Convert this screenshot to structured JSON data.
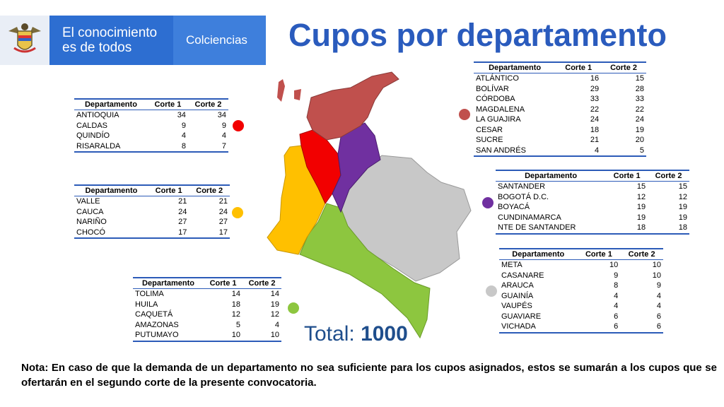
{
  "header": {
    "slogan": "El conocimiento es de todos",
    "brand": "Colciencias"
  },
  "title": "Cupos por departamento",
  "colors": {
    "red": "#f20000",
    "brown": "#c0504d",
    "orange": "#ffc000",
    "purple": "#7030a0",
    "green": "#8dc63f",
    "gray": "#c8c8c8"
  },
  "tables": {
    "red": {
      "headers": [
        "Departamento",
        "Corte 1",
        "Corte 2"
      ],
      "rows": [
        [
          "ANTIOQUIA",
          "34",
          "34"
        ],
        [
          "CALDAS",
          "9",
          "9"
        ],
        [
          "QUINDÍO",
          "4",
          "4"
        ],
        [
          "RISARALDA",
          "8",
          "7"
        ]
      ]
    },
    "orange": {
      "headers": [
        "Departamento",
        "Corte 1",
        "Corte 2"
      ],
      "rows": [
        [
          "VALLE",
          "21",
          "21"
        ],
        [
          "CAUCA",
          "24",
          "24"
        ],
        [
          "NARIÑO",
          "27",
          "27"
        ],
        [
          "CHOCÓ",
          "17",
          "17"
        ]
      ]
    },
    "green": {
      "headers": [
        "Departamento",
        "Corte 1",
        "Corte 2"
      ],
      "rows": [
        [
          "TOLIMA",
          "14",
          "14"
        ],
        [
          "HUILA",
          "18",
          "19"
        ],
        [
          "CAQUETÁ",
          "12",
          "12"
        ],
        [
          "AMAZONAS",
          "5",
          "4"
        ],
        [
          "PUTUMAYO",
          "10",
          "10"
        ]
      ]
    },
    "brown": {
      "headers": [
        "Departamento",
        "Corte 1",
        "Corte 2"
      ],
      "rows": [
        [
          "ATLÁNTICO",
          "16",
          "15"
        ],
        [
          "BOLÍVAR",
          "29",
          "28"
        ],
        [
          "CÓRDOBA",
          "33",
          "33"
        ],
        [
          "MAGDALENA",
          "22",
          "22"
        ],
        [
          "LA GUAJIRA",
          "24",
          "24"
        ],
        [
          "CESAR",
          "18",
          "19"
        ],
        [
          "SUCRE",
          "21",
          "20"
        ],
        [
          "SAN ANDRÉS",
          "4",
          "5"
        ]
      ]
    },
    "purple": {
      "headers": [
        "Departamento",
        "Corte 1",
        "Corte 2"
      ],
      "rows": [
        [
          "SANTANDER",
          "15",
          "15"
        ],
        [
          "BOGOTÁ D.C.",
          "12",
          "12"
        ],
        [
          "BOYACÁ",
          "19",
          "19"
        ],
        [
          "CUNDINAMARCA",
          "19",
          "19"
        ],
        [
          "NTE DE SANTANDER",
          "18",
          "18"
        ]
      ]
    },
    "gray": {
      "headers": [
        "Departamento",
        "Corte 1",
        "Corte 2"
      ],
      "rows": [
        [
          "META",
          "10",
          "10"
        ],
        [
          "CASANARE",
          "9",
          "10"
        ],
        [
          "ARAUCA",
          "8",
          "9"
        ],
        [
          "GUAINÍA",
          "4",
          "4"
        ],
        [
          "VAUPÉS",
          "4",
          "4"
        ],
        [
          "GUAVIARE",
          "6",
          "6"
        ],
        [
          "VICHADA",
          "6",
          "6"
        ]
      ]
    }
  },
  "total": {
    "label": "Total:",
    "value": "1000"
  },
  "note": "Nota: En caso de que la demanda de un departamento no sea suficiente para los cupos asignados, estos se sumarán a los cupos que se ofertarán en el segundo corte de la presente convocatoria."
}
